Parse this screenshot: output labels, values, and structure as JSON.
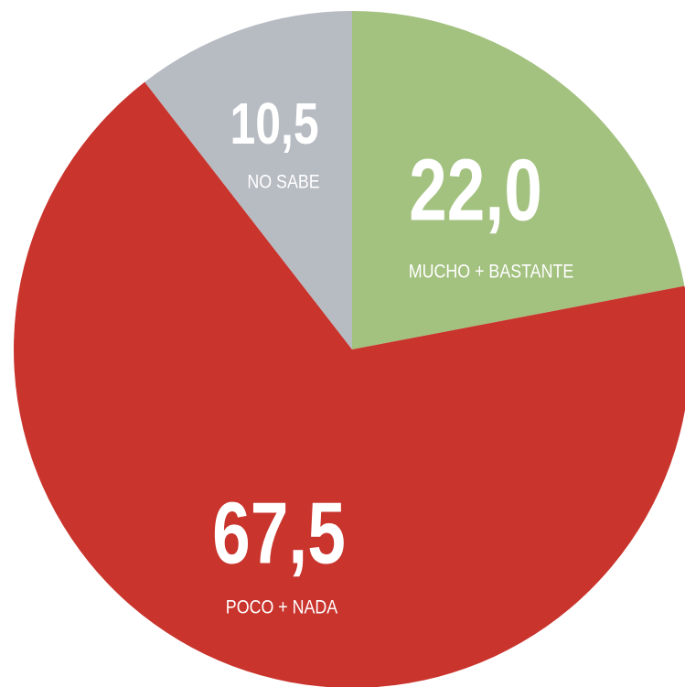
{
  "chart_data": {
    "type": "pie",
    "categories": [
      "MUCHO + BASTANTE",
      "POCO + NADA",
      "NO SABE"
    ],
    "values": [
      22.0,
      67.5,
      10.5
    ],
    "value_labels": [
      "22,0",
      "67,5",
      "10,5"
    ],
    "colors": [
      "#a3c17f",
      "#c9342d",
      "#b7bbc2"
    ]
  }
}
